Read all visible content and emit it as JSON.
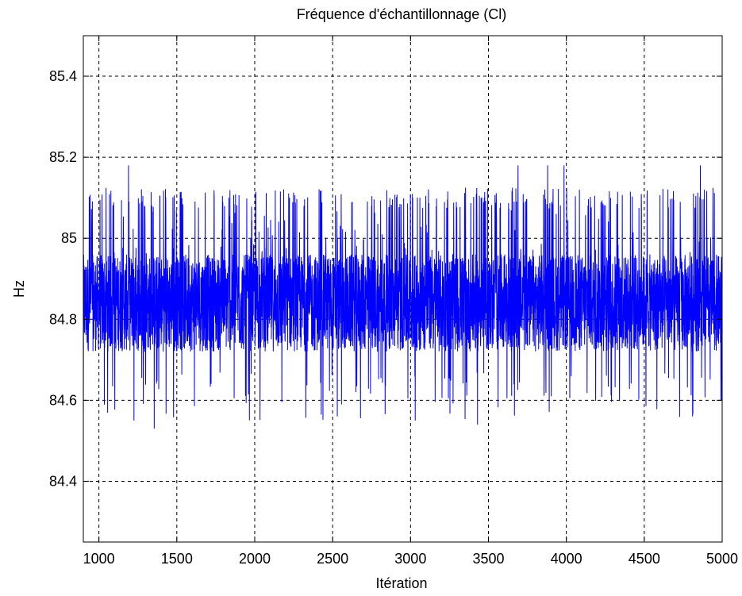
{
  "chart_data": {
    "type": "line",
    "title": "Fréquence d'échantillonnage (Cl)",
    "xlabel": "Itération",
    "ylabel": "Hz",
    "xlim": [
      900,
      5000
    ],
    "ylim": [
      84.25,
      85.5
    ],
    "xticks": [
      1000,
      1500,
      2000,
      2500,
      3000,
      3500,
      4000,
      4500,
      5000
    ],
    "yticks": [
      84.4,
      84.6,
      84.8,
      85,
      85.2,
      85.4
    ],
    "xtick_labels": [
      "1000",
      "1500",
      "2000",
      "2500",
      "3000",
      "3500",
      "4000",
      "4500",
      "5000"
    ],
    "ytick_labels": [
      "84.4",
      "84.6",
      "84.8",
      "85",
      "85.2",
      "85.4"
    ],
    "grid": true,
    "series": [
      {
        "color": "#0000ff",
        "x_start": 900,
        "x_end": 5000,
        "x_step": 1,
        "typical_range": [
          84.72,
          84.96
        ],
        "upper_spike_level": 85.11,
        "max": 85.18,
        "min": 84.53,
        "notable_points": [
          {
            "x": 900,
            "y": 84.53
          },
          {
            "x": 1190,
            "y": 85.18
          },
          {
            "x": 1355,
            "y": 84.53
          },
          {
            "x": 1225,
            "y": 84.55
          },
          {
            "x": 2530,
            "y": 84.56
          },
          {
            "x": 3030,
            "y": 84.55
          },
          {
            "x": 3430,
            "y": 84.54
          },
          {
            "x": 3690,
            "y": 85.18
          },
          {
            "x": 3880,
            "y": 85.18
          },
          {
            "x": 3985,
            "y": 85.18
          },
          {
            "x": 4860,
            "y": 85.18
          },
          {
            "x": 4810,
            "y": 84.56
          }
        ]
      }
    ]
  }
}
